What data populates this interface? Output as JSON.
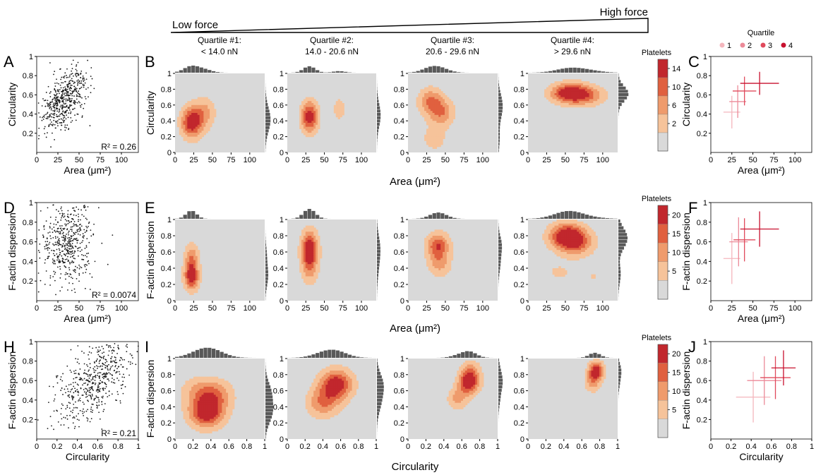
{
  "header": {
    "low_force": "Low force",
    "high_force": "High force",
    "quartiles": [
      {
        "title": "Quartile #1:",
        "range": "< 14.0 nN"
      },
      {
        "title": "Quartile #2:",
        "range": "14.0 - 20.6 nN"
      },
      {
        "title": "Quartile #3:",
        "range": "20.6 - 29.6 nN"
      },
      {
        "title": "Quartile #4:",
        "range": "> 29.6 nN"
      }
    ]
  },
  "panel_labels": [
    "A",
    "B",
    "C",
    "D",
    "E",
    "F",
    "H",
    "I",
    "J"
  ],
  "shared_xlabels": {
    "row1": "Area (μm²)",
    "row2": "Area (μm²)",
    "row3": "Circularity"
  },
  "colors": {
    "density_levels": [
      "#d9d9d9",
      "#f6c39a",
      "#ef9b6c",
      "#e0603f",
      "#c1272d"
    ],
    "quartile_markers": [
      "#f4b6bd",
      "#ec8a98",
      "#e04a5c",
      "#c8102e"
    ],
    "scatter_point": "#1a1a1a",
    "histogram": "#595959",
    "plot_bg": "#d9d9d9",
    "contour_line": "#8b2e16"
  },
  "chart_data": [
    {
      "id": "A",
      "type": "scatter",
      "xlabel": "Area (μm²)",
      "ylabel": "Circularity",
      "xlim": [
        0,
        120
      ],
      "ylim": [
        0,
        1
      ],
      "xticks": [
        0,
        25,
        50,
        75,
        100
      ],
      "yticks": [
        0.2,
        0.4,
        0.6,
        0.8,
        1
      ],
      "annotation": "R² = 0.26",
      "cloud": {
        "x_mean": 32,
        "x_sd": 14,
        "y_mean": 0.55,
        "y_sd": 0.18,
        "n": 520
      }
    },
    {
      "id": "B",
      "type": "contour_density",
      "xlabel": "",
      "ylabel": "Circularity",
      "xlim": [
        0,
        120
      ],
      "ylim": [
        0,
        1
      ],
      "xticks": [
        0,
        25,
        50,
        75,
        100
      ],
      "yticks": [
        0,
        0.2,
        0.4,
        0.6,
        0.8,
        1
      ],
      "colorbar": {
        "title": "Platelets",
        "ticks": [
          2,
          6,
          10,
          14
        ]
      },
      "quartiles": [
        {
          "peaks": [
            [
              22,
              0.38,
              1.0
            ],
            [
              40,
              0.5,
              0.45
            ]
          ],
          "sx": 10,
          "sy": 0.14
        },
        {
          "peaks": [
            [
              30,
              0.45,
              1.0
            ],
            [
              70,
              0.55,
              0.25
            ]
          ],
          "sx": 8,
          "sy": 0.14
        },
        {
          "peaks": [
            [
              30,
              0.65,
              0.6
            ],
            [
              45,
              0.5,
              0.55
            ],
            [
              35,
              0.18,
              0.3
            ]
          ],
          "sx": 12,
          "sy": 0.12
        },
        {
          "peaks": [
            [
              55,
              0.75,
              1.0
            ],
            [
              80,
              0.72,
              0.5
            ]
          ],
          "sx": 18,
          "sy": 0.09
        }
      ]
    },
    {
      "id": "C",
      "type": "errorbar",
      "xlabel": "Area (μm²)",
      "ylabel": "Circularity",
      "xlim": [
        0,
        120
      ],
      "ylim": [
        0,
        1
      ],
      "xticks": [
        0,
        25,
        50,
        75,
        100
      ],
      "yticks": [
        0.2,
        0.4,
        0.6,
        0.8,
        1
      ],
      "legend": {
        "title": "Quartile",
        "labels": [
          "1",
          "2",
          "3",
          "4"
        ],
        "position": "top"
      },
      "series": [
        {
          "name": "1",
          "x": 25,
          "y": 0.42,
          "xerr": 10,
          "yerr": 0.17
        },
        {
          "name": "2",
          "x": 32,
          "y": 0.53,
          "xerr": 10,
          "yerr": 0.17
        },
        {
          "name": "3",
          "x": 40,
          "y": 0.64,
          "xerr": 14,
          "yerr": 0.15
        },
        {
          "name": "4",
          "x": 58,
          "y": 0.72,
          "xerr": 23,
          "yerr": 0.12
        }
      ]
    },
    {
      "id": "D",
      "type": "scatter",
      "xlabel": "Area (μm²)",
      "ylabel": "F-actin dispersion",
      "xlim": [
        0,
        120
      ],
      "ylim": [
        0,
        1
      ],
      "xticks": [
        0,
        25,
        50,
        75,
        100
      ],
      "yticks": [
        0.2,
        0.4,
        0.6,
        0.8,
        1
      ],
      "annotation": "R² = 0.0074",
      "cloud": {
        "x_mean": 36,
        "x_sd": 15,
        "y_mean": 0.6,
        "y_sd": 0.2,
        "n": 520
      }
    },
    {
      "id": "E",
      "type": "contour_density",
      "xlabel": "",
      "ylabel": "F-actin dispersion",
      "xlim": [
        0,
        120
      ],
      "ylim": [
        0,
        1
      ],
      "xticks": [
        0,
        25,
        50,
        75,
        100
      ],
      "yticks": [
        0,
        0.2,
        0.4,
        0.6,
        0.8,
        1
      ],
      "colorbar": {
        "title": "Platelets",
        "ticks": [
          5,
          10,
          15,
          20
        ]
      },
      "quartiles": [
        {
          "peaks": [
            [
              22,
              0.3,
              1.0
            ],
            [
              22,
              0.55,
              0.5
            ]
          ],
          "sx": 7,
          "sy": 0.12
        },
        {
          "peaks": [
            [
              30,
              0.65,
              1.0
            ],
            [
              30,
              0.4,
              0.45
            ]
          ],
          "sx": 8,
          "sy": 0.15
        },
        {
          "peaks": [
            [
              40,
              0.68,
              0.8
            ],
            [
              42,
              0.45,
              0.45
            ]
          ],
          "sx": 11,
          "sy": 0.11
        },
        {
          "peaks": [
            [
              52,
              0.8,
              1.0
            ],
            [
              65,
              0.7,
              0.55
            ],
            [
              40,
              0.35,
              0.2
            ],
            [
              88,
              0.3,
              0.18
            ]
          ],
          "sx": 17,
          "sy": 0.11
        }
      ]
    },
    {
      "id": "F",
      "type": "errorbar",
      "xlabel": "Area (μm²)",
      "ylabel": "F-actin dispersion",
      "xlim": [
        0,
        120
      ],
      "ylim": [
        0,
        1
      ],
      "xticks": [
        0,
        25,
        50,
        75,
        100
      ],
      "yticks": [
        0.2,
        0.4,
        0.6,
        0.8,
        1
      ],
      "series": [
        {
          "name": "1",
          "x": 25,
          "y": 0.43,
          "xerr": 10,
          "yerr": 0.26
        },
        {
          "name": "2",
          "x": 33,
          "y": 0.6,
          "xerr": 11,
          "yerr": 0.25
        },
        {
          "name": "3",
          "x": 40,
          "y": 0.62,
          "xerr": 13,
          "yerr": 0.22
        },
        {
          "name": "4",
          "x": 58,
          "y": 0.73,
          "xerr": 23,
          "yerr": 0.18
        }
      ]
    },
    {
      "id": "H",
      "type": "scatter",
      "xlabel": "Circularity",
      "ylabel": "F-actin dispersion",
      "xlim": [
        0,
        1
      ],
      "ylim": [
        0,
        1
      ],
      "xticks": [
        0,
        0.2,
        0.4,
        0.6,
        0.8,
        1
      ],
      "yticks": [
        0.2,
        0.4,
        0.6,
        0.8,
        1
      ],
      "annotation": "R² = 0.21",
      "cloud": {
        "x_mean": 0.55,
        "x_sd": 0.2,
        "y_mean": 0.6,
        "y_sd": 0.2,
        "n": 520
      }
    },
    {
      "id": "I",
      "type": "contour_density",
      "xlabel": "",
      "ylabel": "F-actin dispersion",
      "xlim": [
        0,
        1
      ],
      "ylim": [
        0,
        1
      ],
      "xticks": [
        0,
        0.2,
        0.4,
        0.6,
        0.8,
        1
      ],
      "yticks": [
        0,
        0.2,
        0.4,
        0.6,
        0.8,
        1
      ],
      "colorbar": {
        "title": "Platelets",
        "ticks": [
          5,
          10,
          15,
          20
        ]
      },
      "quartiles": [
        {
          "peaks": [
            [
              0.35,
              0.32,
              1.0
            ],
            [
              0.45,
              0.55,
              0.55
            ],
            [
              0.25,
              0.6,
              0.35
            ]
          ],
          "sx": 0.14,
          "sy": 0.13
        },
        {
          "peaks": [
            [
              0.55,
              0.68,
              1.0
            ],
            [
              0.4,
              0.45,
              0.6
            ]
          ],
          "sx": 0.13,
          "sy": 0.13
        },
        {
          "peaks": [
            [
              0.68,
              0.7,
              1.0
            ],
            [
              0.55,
              0.5,
              0.45
            ],
            [
              0.7,
              0.85,
              0.4
            ]
          ],
          "sx": 0.08,
          "sy": 0.1
        },
        {
          "peaks": [
            [
              0.76,
              0.85,
              1.0
            ],
            [
              0.72,
              0.7,
              0.5
            ]
          ],
          "sx": 0.06,
          "sy": 0.08
        }
      ]
    },
    {
      "id": "J",
      "type": "errorbar",
      "xlabel": "Circularity",
      "ylabel": "F-actin dispersion",
      "xlim": [
        0,
        1
      ],
      "ylim": [
        0,
        1
      ],
      "xticks": [
        0,
        0.2,
        0.4,
        0.6,
        0.8,
        1
      ],
      "yticks": [
        0.2,
        0.4,
        0.6,
        0.8,
        1
      ],
      "series": [
        {
          "name": "1",
          "x": 0.42,
          "y": 0.43,
          "xerr": 0.17,
          "yerr": 0.26
        },
        {
          "name": "2",
          "x": 0.53,
          "y": 0.6,
          "xerr": 0.17,
          "yerr": 0.25
        },
        {
          "name": "3",
          "x": 0.64,
          "y": 0.63,
          "xerr": 0.15,
          "yerr": 0.22
        },
        {
          "name": "4",
          "x": 0.72,
          "y": 0.73,
          "xerr": 0.12,
          "yerr": 0.18
        }
      ]
    }
  ]
}
